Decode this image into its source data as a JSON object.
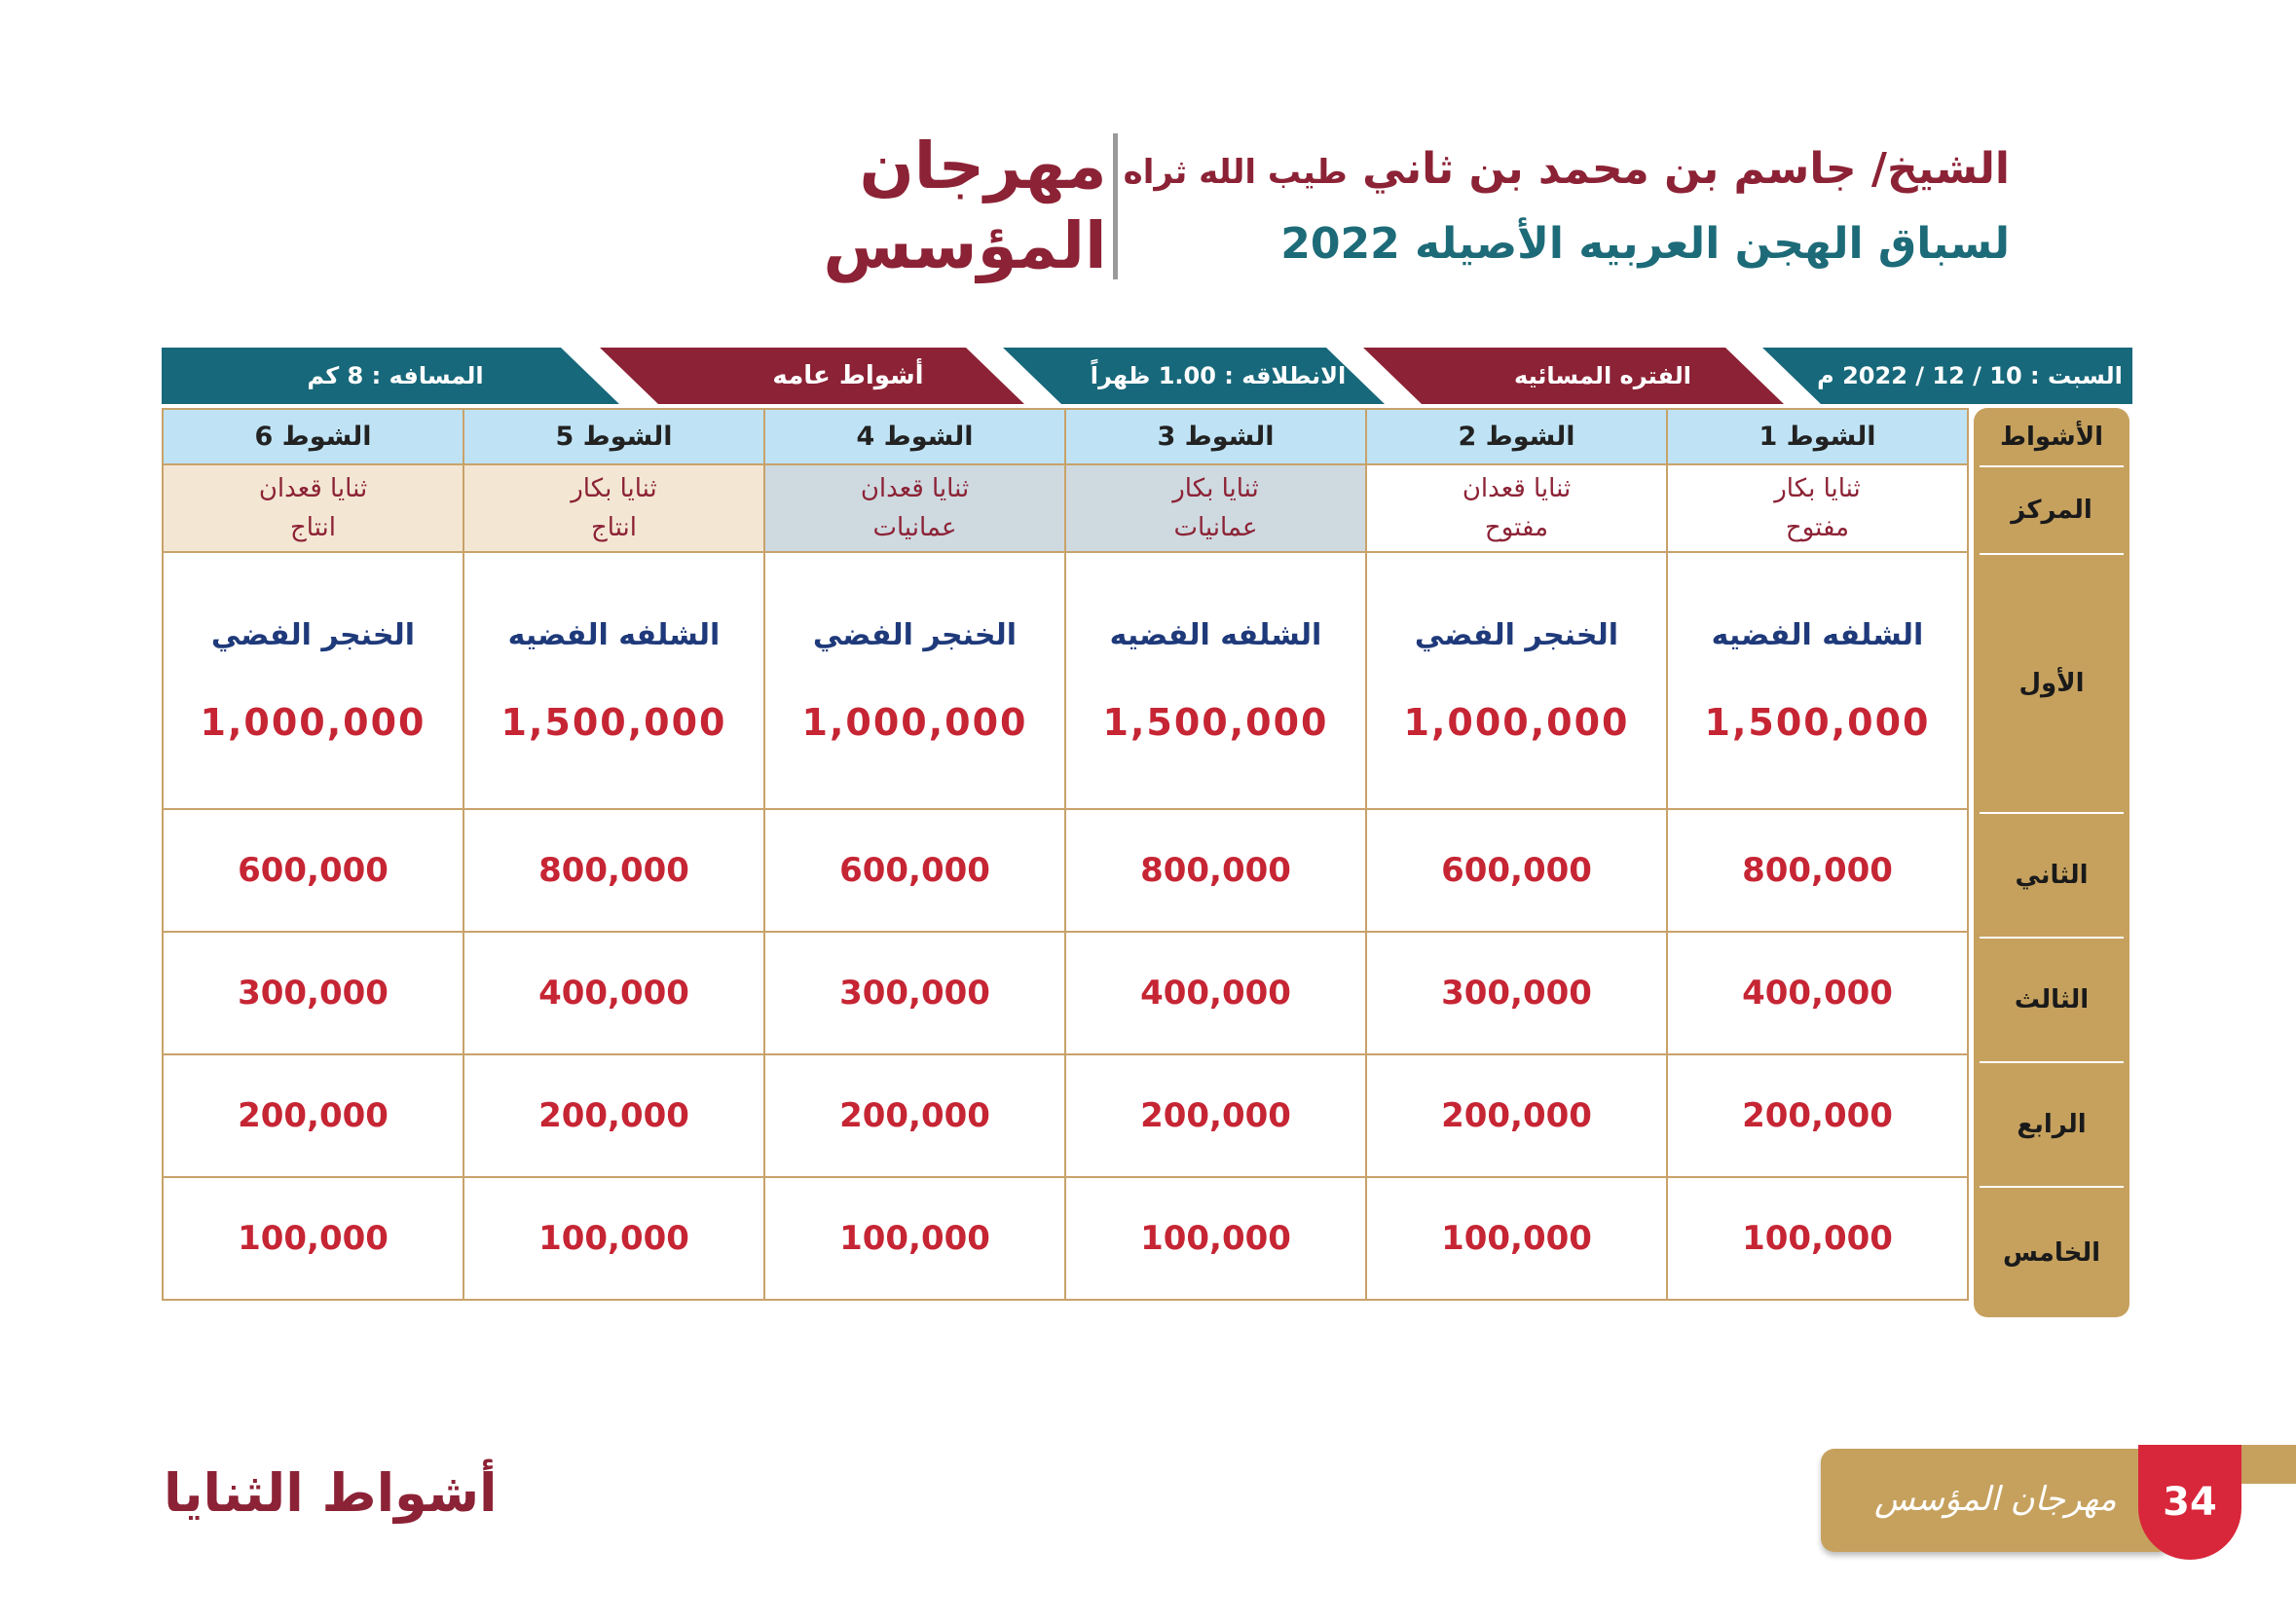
{
  "header": {
    "brand_line1": "مهرجان",
    "brand_line2": "المؤسس",
    "subtitle_line1_main": "الشيخ/ جاسم بن محمد بن ثاني",
    "subtitle_line1_suffix": "طيب الله ثراه",
    "subtitle_line2": "لسباق الهجن العربيه الأصيله 2022"
  },
  "info_bar": {
    "date": "السبت : 10 / 12 / 2022 م",
    "period": "الفتره المسائيه",
    "start_time": "الانطلاقه : 1.00 ظهراً",
    "race_type": "أشواط عامه",
    "distance": "المسافه : 8 كم"
  },
  "side_labels": {
    "heats": "الأشواط",
    "center": "المركز",
    "first": "الأول",
    "second": "الثاني",
    "third": "الثالث",
    "fourth": "الرابع",
    "fifth": "الخامس"
  },
  "heats": [
    {
      "label": "الشوط 1",
      "category": "ثنايا بكار",
      "type": "مفتوح",
      "trophy": "الشلفه الفضيه",
      "prizes": [
        "1,500,000",
        "800,000",
        "400,000",
        "200,000",
        "100,000"
      ]
    },
    {
      "label": "الشوط 2",
      "category": "ثنايا قعدان",
      "type": "مفتوح",
      "trophy": "الخنجر الفضي",
      "prizes": [
        "1,000,000",
        "600,000",
        "300,000",
        "200,000",
        "100,000"
      ]
    },
    {
      "label": "الشوط 3",
      "category": "ثنايا بكار",
      "type": "عمانيات",
      "trophy": "الشلفه الفضيه",
      "prizes": [
        "1,500,000",
        "800,000",
        "400,000",
        "200,000",
        "100,000"
      ]
    },
    {
      "label": "الشوط 4",
      "category": "ثنايا قعدان",
      "type": "عمانيات",
      "trophy": "الخنجر الفضي",
      "prizes": [
        "1,000,000",
        "600,000",
        "300,000",
        "200,000",
        "100,000"
      ]
    },
    {
      "label": "الشوط 5",
      "category": "ثنايا بكار",
      "type": "انتاج",
      "trophy": "الشلفه الفضيه",
      "prizes": [
        "1,500,000",
        "800,000",
        "400,000",
        "200,000",
        "100,000"
      ]
    },
    {
      "label": "الشوط 6",
      "category": "ثنايا قعدان",
      "type": "انتاج",
      "trophy": "الخنجر الفضي",
      "prizes": [
        "1,000,000",
        "600,000",
        "300,000",
        "200,000",
        "100,000"
      ]
    }
  ],
  "footer": {
    "section_title": "أشواط الثنايا",
    "logo_text": "مهرجان المؤسس",
    "page_number": "34"
  },
  "colors": {
    "maroon": "#8c2235",
    "teal": "#1d6b78",
    "gold": "#c6a15e",
    "red": "#c62534",
    "navy": "#1f3a7a"
  }
}
